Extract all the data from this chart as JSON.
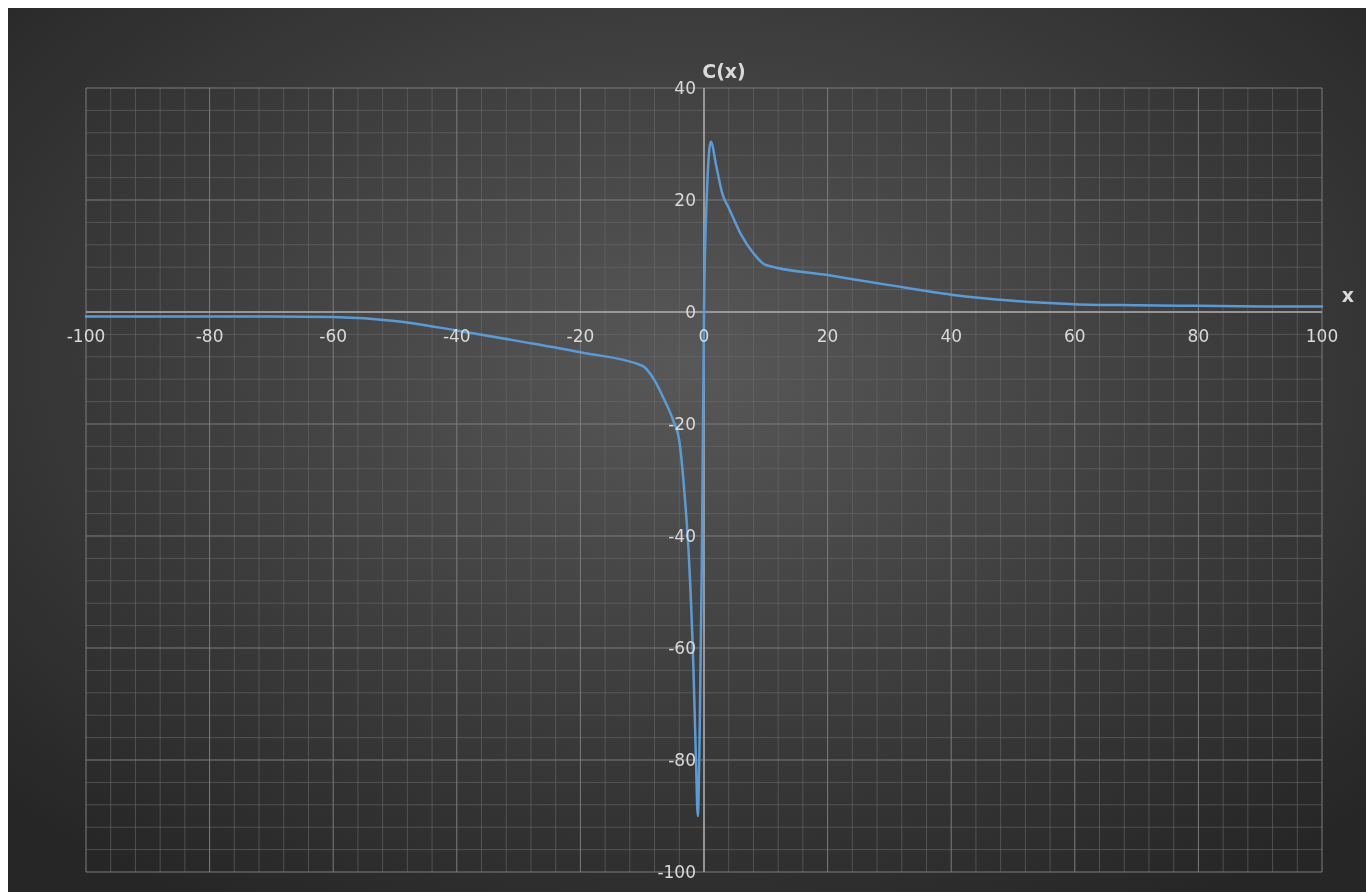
{
  "chart_data": {
    "type": "line",
    "xlabel": "x",
    "ylabel": "C(x)",
    "x": [
      -100,
      -90,
      -80,
      -70,
      -60,
      -50,
      -40,
      -30,
      -20,
      -10,
      -8,
      -6.5,
      -5,
      -4,
      -3.2,
      -2.4,
      -1.7,
      -1.3,
      -1,
      -0.7,
      -0.35,
      0,
      0.5,
      1.1,
      2,
      3,
      4,
      6,
      8,
      10,
      20,
      30,
      40,
      50,
      60,
      70,
      80,
      90,
      100
    ],
    "series": [
      {
        "color": "#5b9bd5",
        "values": [
          -0.8,
          -0.8,
          -0.8,
          -0.8,
          -0.9,
          -1.6,
          -3.3,
          -5.2,
          -7.2,
          -9.6,
          -12.2,
          -15.5,
          -19.3,
          -23,
          -31.8,
          -44.7,
          -64,
          -80,
          -90,
          -75,
          -44.6,
          0,
          22,
          30.4,
          26,
          21,
          18.6,
          13.8,
          10.5,
          8.4,
          6.6,
          4.8,
          3.1,
          2,
          1.4,
          1.2,
          1.1,
          1,
          1
        ]
      }
    ],
    "xlim": [
      -100,
      100
    ],
    "xticks": [
      -100,
      -80,
      -60,
      -40,
      -20,
      0,
      20,
      40,
      60,
      80,
      100
    ],
    "ylim": [
      -100,
      40
    ],
    "yticks": [
      -100,
      -80,
      -60,
      -40,
      -20,
      0,
      20,
      40
    ],
    "grid": true,
    "marker": "none",
    "line_style": "solid"
  }
}
